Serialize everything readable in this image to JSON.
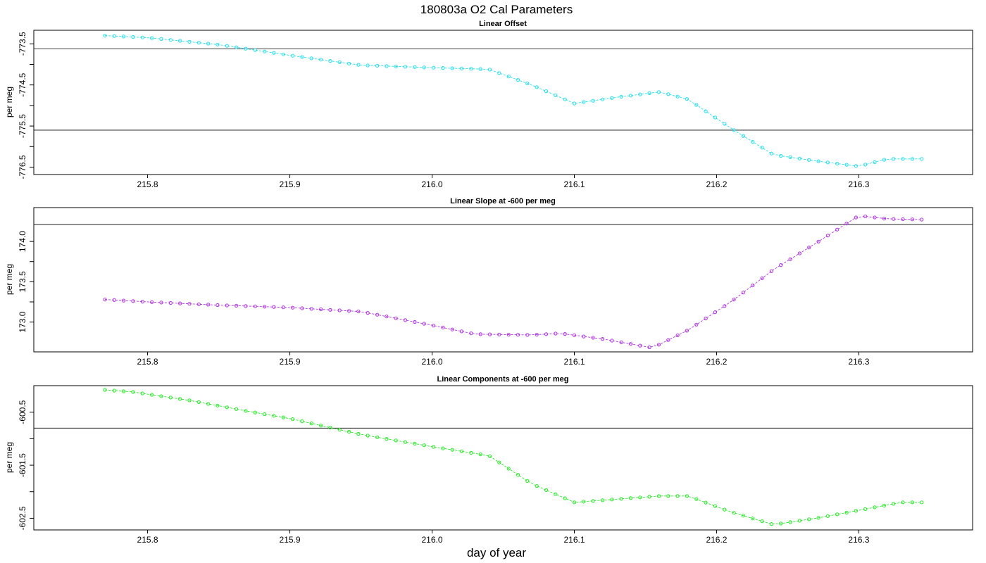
{
  "figure": {
    "title": "180803a   O2 Cal Parameters",
    "xlabel": "day of year"
  },
  "chart_data": [
    {
      "type": "line",
      "title": "Linear Offset",
      "xlabel": "day of year",
      "ylabel": "per meg",
      "xlim": [
        215.72,
        216.38
      ],
      "ylim": [
        -776.68,
        -773.17
      ],
      "xticks": [
        215.8,
        215.9,
        216.0,
        216.1,
        216.2,
        216.3
      ],
      "xtick_labels": [
        "215.8",
        "215.9",
        "216.0",
        "216.1",
        "216.2",
        "216.3"
      ],
      "yticks": [
        -773.5,
        -774.5,
        -775.5,
        -776.5
      ],
      "ytick_labels": [
        "-773.5",
        "-774.5",
        "-775.5",
        "-776.5"
      ],
      "hlines": [
        -773.62,
        -775.6
      ],
      "color": "#22e0f0",
      "series": [
        {
          "name": "Linear Offset",
          "x": [
            215.77,
            215.8,
            215.85,
            215.9,
            215.95,
            216.0,
            216.04,
            216.07,
            216.1,
            216.13,
            216.16,
            216.18,
            216.21,
            216.24,
            216.27,
            216.3,
            216.32,
            216.35
          ],
          "y": [
            -773.3,
            -773.35,
            -773.52,
            -773.78,
            -774.02,
            -774.08,
            -774.12,
            -774.5,
            -774.95,
            -774.8,
            -774.67,
            -774.85,
            -775.55,
            -776.2,
            -776.35,
            -776.48,
            -776.3,
            -776.3
          ]
        }
      ]
    },
    {
      "type": "line",
      "title": "Linear Slope at -600 per meg",
      "xlabel": "day of year",
      "ylabel": "per meg",
      "xlim": [
        215.72,
        216.38
      ],
      "ylim": [
        172.63,
        174.42
      ],
      "xticks": [
        215.8,
        215.9,
        216.0,
        216.1,
        216.2,
        216.3
      ],
      "xtick_labels": [
        "215.8",
        "215.9",
        "216.0",
        "216.1",
        "216.2",
        "216.3"
      ],
      "yticks": [
        173.0,
        173.5,
        174.0
      ],
      "ytick_labels": [
        "173.0",
        "173.5",
        "174.0"
      ],
      "hlines": [
        174.21
      ],
      "color": "#b030e8",
      "series": [
        {
          "name": "Linear Slope",
          "x": [
            215.77,
            215.8,
            215.85,
            215.9,
            215.95,
            216.0,
            216.03,
            216.07,
            216.09,
            216.12,
            216.155,
            216.18,
            216.21,
            216.24,
            216.27,
            216.3,
            216.32,
            216.35
          ],
          "y": [
            173.28,
            173.25,
            173.21,
            173.18,
            173.13,
            172.96,
            172.85,
            172.84,
            172.86,
            172.79,
            172.68,
            172.9,
            173.25,
            173.65,
            173.98,
            174.32,
            174.28,
            174.27
          ]
        }
      ]
    },
    {
      "type": "line",
      "title": "Linear Components at -600 per meg",
      "xlabel": "day of year",
      "ylabel": "per meg",
      "xlim": [
        215.72,
        216.38
      ],
      "ylim": [
        -602.72,
        -600.0
      ],
      "xticks": [
        215.8,
        215.9,
        216.0,
        216.1,
        216.2,
        216.3
      ],
      "xtick_labels": [
        "215.8",
        "215.9",
        "216.0",
        "216.1",
        "216.2",
        "216.3"
      ],
      "yticks": [
        -600.5,
        -601.5,
        -602.5
      ],
      "ytick_labels": [
        "-600.5",
        "-601.5",
        "-602.5"
      ],
      "hlines": [
        -600.8
      ],
      "color": "#22ee22",
      "series": [
        {
          "name": "Linear Components",
          "x": [
            215.77,
            215.79,
            215.83,
            215.87,
            215.9,
            215.95,
            216.0,
            216.04,
            216.07,
            216.1,
            216.14,
            216.16,
            216.18,
            216.21,
            216.24,
            216.27,
            216.3,
            216.33,
            216.35
          ],
          "y": [
            -600.08,
            -600.12,
            -600.28,
            -600.48,
            -600.62,
            -600.92,
            -601.15,
            -601.32,
            -601.85,
            -602.2,
            -602.12,
            -602.08,
            -602.08,
            -602.38,
            -602.62,
            -602.5,
            -602.35,
            -602.2,
            -602.2
          ]
        }
      ]
    }
  ]
}
